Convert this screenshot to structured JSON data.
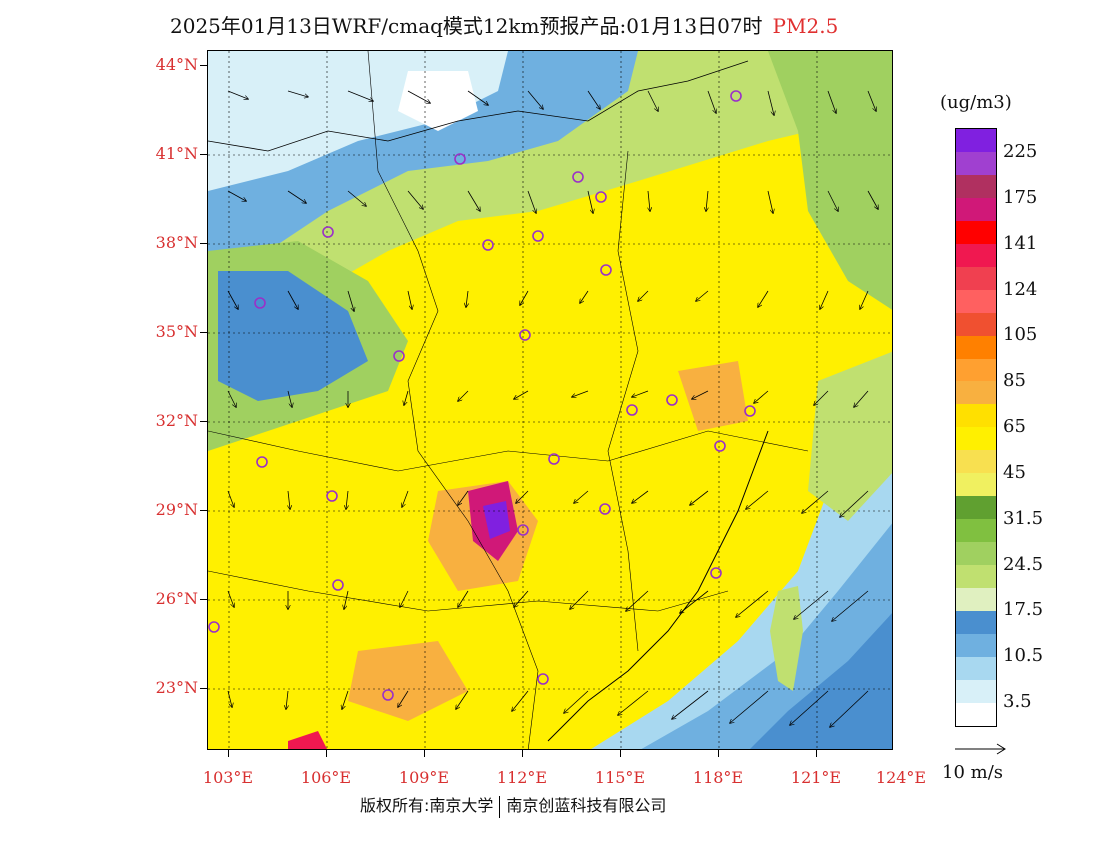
{
  "title": {
    "text": "2025年01月13日WRF/cmaq模式12km预报产品:01月13日07时",
    "variable": "PM2.5"
  },
  "map": {
    "lat_labels": [
      "44°N",
      "41°N",
      "38°N",
      "35°N",
      "32°N",
      "29°N",
      "26°N",
      "23°N"
    ],
    "lon_labels": [
      "103°E",
      "106°E",
      "109°E",
      "112°E",
      "115°E",
      "118°E",
      "121°E",
      "124°E"
    ],
    "colors": {
      "ocean_deep": "#4a8fcf",
      "ocean_mid": "#6fb0e0",
      "ocean_light": "#a8d8f0",
      "clean_land": "#d8f0f8",
      "green": "#8cc850",
      "yellow": "#ffe000",
      "orange": "#f5a030",
      "purple": "#8020c0",
      "station_marker": "#9a30c8"
    }
  },
  "legend": {
    "unit": "(ug/m3)",
    "colors": [
      "#8020e0",
      "#a040d0",
      "#b03060",
      "#d01878",
      "#ff0000",
      "#f01850",
      "#f04050",
      "#ff6060",
      "#f05030",
      "#ff8000",
      "#ffa030",
      "#f8b040",
      "#ffe000",
      "#fff000",
      "#f8e050",
      "#f0f060",
      "#60a030",
      "#80c040",
      "#a0d060",
      "#c0e070",
      "#e0f0c0",
      "#4a8fcf",
      "#6fb0e0",
      "#a8d8f0",
      "#d8f0f8",
      "#ffffff"
    ],
    "labels": [
      "225",
      "175",
      "141",
      "124",
      "105",
      "85",
      "65",
      "45",
      "31.5",
      "24.5",
      "17.5",
      "10.5",
      "3.5"
    ]
  },
  "vector_reference": {
    "label": "10 m/s"
  },
  "footer": {
    "left": "版权所有:南京大学",
    "right": "南京创蓝科技有限公司"
  }
}
